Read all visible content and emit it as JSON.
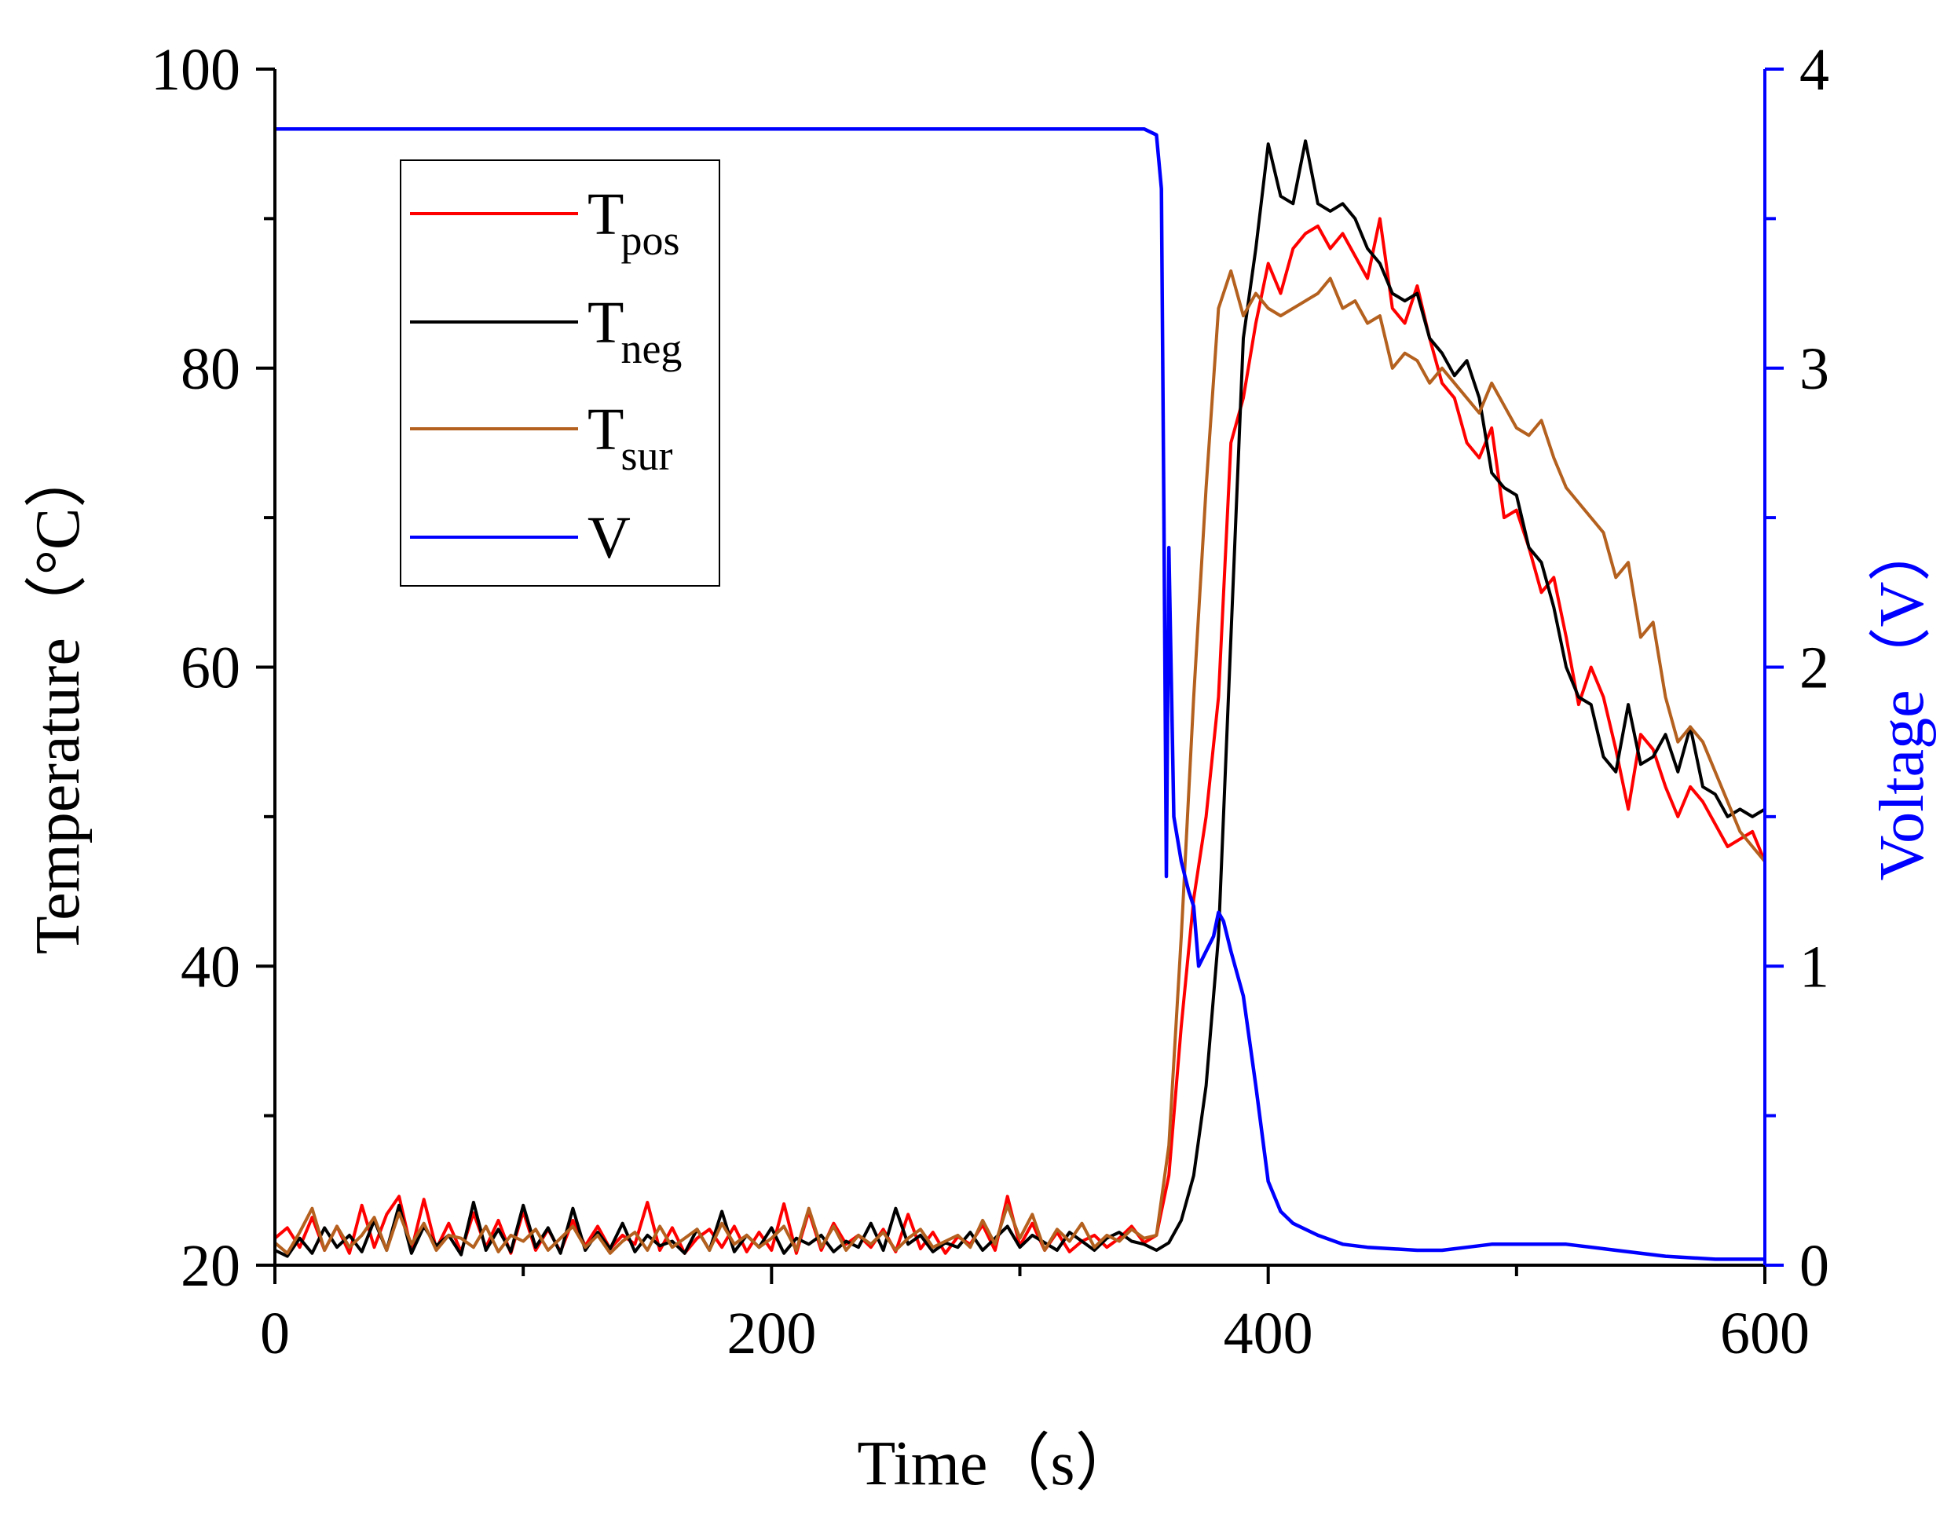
{
  "chart_data": {
    "type": "line",
    "x_label": "Time（s）",
    "y_left_label": "Temperature（°C）",
    "y_right_label": "Voltage（V）",
    "x_range": [
      0,
      600
    ],
    "y_left_range": [
      20,
      100
    ],
    "y_right_range": [
      0,
      4
    ],
    "x_ticks": [
      0,
      200,
      400,
      600
    ],
    "y_left_ticks": [
      20,
      40,
      60,
      80,
      100
    ],
    "y_right_ticks": [
      0,
      1,
      2,
      3,
      4
    ],
    "legend": [
      {
        "key": "pos",
        "base": "T",
        "sub": "pos"
      },
      {
        "key": "neg",
        "base": "T",
        "sub": "neg"
      },
      {
        "key": "sur",
        "base": "T",
        "sub": "sur"
      },
      {
        "key": "V",
        "base": "V",
        "sub": ""
      }
    ],
    "series": [
      {
        "name": "Tpos",
        "key": "pos",
        "axis": "left",
        "color": "#ff0000",
        "x": [
          0,
          5,
          10,
          15,
          20,
          25,
          30,
          35,
          40,
          45,
          50,
          55,
          60,
          65,
          70,
          75,
          80,
          85,
          90,
          95,
          100,
          105,
          110,
          115,
          120,
          125,
          130,
          135,
          140,
          145,
          150,
          155,
          160,
          165,
          170,
          175,
          180,
          185,
          190,
          195,
          200,
          205,
          210,
          215,
          220,
          225,
          230,
          235,
          240,
          245,
          250,
          255,
          260,
          265,
          270,
          275,
          280,
          285,
          290,
          295,
          300,
          305,
          310,
          315,
          320,
          325,
          330,
          335,
          340,
          345,
          350,
          355,
          360,
          365,
          370,
          375,
          380,
          385,
          390,
          395,
          400,
          405,
          410,
          415,
          420,
          425,
          430,
          435,
          440,
          445,
          450,
          455,
          460,
          465,
          470,
          475,
          480,
          485,
          490,
          495,
          500,
          505,
          510,
          515,
          520,
          525,
          530,
          535,
          540,
          545,
          550,
          555,
          560,
          565,
          570,
          575,
          580,
          585,
          590,
          595,
          600
        ],
        "y": [
          21.8,
          22.5,
          21.2,
          23.2,
          21.0,
          22.6,
          20.8,
          24.0,
          21.2,
          23.4,
          24.6,
          21.0,
          24.4,
          21.1,
          22.8,
          20.9,
          23.5,
          21.2,
          23.0,
          20.8,
          23.6,
          21.0,
          22.4,
          20.9,
          23.0,
          21.3,
          22.6,
          21.1,
          22.0,
          21.4,
          24.2,
          21.0,
          22.5,
          20.8,
          21.8,
          22.4,
          21.2,
          22.6,
          20.9,
          22.2,
          21.0,
          24.1,
          20.8,
          23.6,
          21.0,
          22.8,
          21.4,
          22.0,
          21.2,
          22.4,
          20.9,
          23.4,
          21.1,
          22.2,
          20.8,
          21.9,
          21.4,
          22.7,
          21.0,
          24.6,
          21.3,
          22.8,
          21.0,
          22.2,
          20.9,
          21.6,
          22.0,
          21.2,
          21.8,
          22.6,
          21.5,
          22.0,
          26.0,
          36.0,
          44.5,
          50.0,
          58.0,
          75.0,
          78.0,
          83.0,
          87.0,
          85.0,
          88.0,
          89.0,
          89.5,
          88.0,
          89.0,
          87.5,
          86.0,
          90.0,
          84.0,
          83.0,
          85.5,
          82.0,
          79.0,
          78.0,
          75.0,
          74.0,
          76.0,
          70.0,
          70.5,
          68.0,
          65.0,
          66.0,
          62.0,
          57.5,
          60.0,
          58.0,
          54.5,
          50.5,
          55.5,
          54.5,
          52.0,
          50.0,
          52.0,
          51.0,
          49.5,
          48.0,
          48.5,
          49.0,
          47.0
        ]
      },
      {
        "name": "Tneg",
        "key": "neg",
        "axis": "left",
        "color": "#000000",
        "x": [
          0,
          5,
          10,
          15,
          20,
          25,
          30,
          35,
          40,
          45,
          50,
          55,
          60,
          65,
          70,
          75,
          80,
          85,
          90,
          95,
          100,
          105,
          110,
          115,
          120,
          125,
          130,
          135,
          140,
          145,
          150,
          155,
          160,
          165,
          170,
          175,
          180,
          185,
          190,
          195,
          200,
          205,
          210,
          215,
          220,
          225,
          230,
          235,
          240,
          245,
          250,
          255,
          260,
          265,
          270,
          275,
          280,
          285,
          290,
          295,
          300,
          305,
          310,
          315,
          320,
          325,
          330,
          335,
          340,
          345,
          350,
          355,
          360,
          365,
          370,
          375,
          380,
          385,
          390,
          395,
          400,
          405,
          410,
          415,
          420,
          425,
          430,
          435,
          440,
          445,
          450,
          455,
          460,
          465,
          470,
          475,
          480,
          485,
          490,
          495,
          500,
          505,
          510,
          515,
          520,
          525,
          530,
          535,
          540,
          545,
          550,
          555,
          560,
          565,
          570,
          575,
          580,
          585,
          590,
          595,
          600
        ],
        "y": [
          21.0,
          20.6,
          21.8,
          20.8,
          22.5,
          21.2,
          22.0,
          20.9,
          23.0,
          21.0,
          24.0,
          20.8,
          22.6,
          21.3,
          22.0,
          20.7,
          24.2,
          21.0,
          22.4,
          20.9,
          24.0,
          21.2,
          22.5,
          20.8,
          23.8,
          21.0,
          22.2,
          21.1,
          22.8,
          20.9,
          22.0,
          21.3,
          21.6,
          20.8,
          22.4,
          21.0,
          23.6,
          20.9,
          22.0,
          21.2,
          22.5,
          20.8,
          21.8,
          21.4,
          22.0,
          20.9,
          21.6,
          21.2,
          22.8,
          21.0,
          23.8,
          21.4,
          22.0,
          20.9,
          21.5,
          21.2,
          22.2,
          21.0,
          21.8,
          22.6,
          21.2,
          22.0,
          21.5,
          21.0,
          22.2,
          21.6,
          21.0,
          21.8,
          22.2,
          21.6,
          21.4,
          21.0,
          21.5,
          23.0,
          26.0,
          32.0,
          42.0,
          62.0,
          82.0,
          88.0,
          95.0,
          91.5,
          91.0,
          95.2,
          91.0,
          90.5,
          91.0,
          90.0,
          88.0,
          87.0,
          85.0,
          84.5,
          85.0,
          82.0,
          81.0,
          79.5,
          80.5,
          78.0,
          73.0,
          72.0,
          71.5,
          68.0,
          67.0,
          64.0,
          60.0,
          58.0,
          57.5,
          54.0,
          53.0,
          57.5,
          53.5,
          54.0,
          55.5,
          53.0,
          56.0,
          52.0,
          51.5,
          50.0,
          50.5,
          50.0,
          50.5
        ]
      },
      {
        "name": "Tsur",
        "key": "sur",
        "axis": "left",
        "color": "#b4601e",
        "x": [
          0,
          5,
          10,
          15,
          20,
          25,
          30,
          35,
          40,
          45,
          50,
          55,
          60,
          65,
          70,
          75,
          80,
          85,
          90,
          95,
          100,
          105,
          110,
          115,
          120,
          125,
          130,
          135,
          140,
          145,
          150,
          155,
          160,
          165,
          170,
          175,
          180,
          185,
          190,
          195,
          200,
          205,
          210,
          215,
          220,
          225,
          230,
          235,
          240,
          245,
          250,
          255,
          260,
          265,
          270,
          275,
          280,
          285,
          290,
          295,
          300,
          305,
          310,
          315,
          320,
          325,
          330,
          335,
          340,
          345,
          350,
          355,
          360,
          365,
          370,
          375,
          380,
          385,
          390,
          395,
          400,
          405,
          410,
          415,
          420,
          425,
          430,
          435,
          440,
          445,
          450,
          455,
          460,
          465,
          470,
          475,
          480,
          485,
          490,
          495,
          500,
          505,
          510,
          515,
          520,
          525,
          530,
          535,
          540,
          545,
          550,
          555,
          560,
          565,
          570,
          575,
          580,
          585,
          590,
          595,
          600
        ],
        "y": [
          21.5,
          20.8,
          22.2,
          23.8,
          21.0,
          22.6,
          21.2,
          22.0,
          23.2,
          21.0,
          23.5,
          21.4,
          22.8,
          21.0,
          22.0,
          21.8,
          21.2,
          22.6,
          20.9,
          22.0,
          21.6,
          22.4,
          21.0,
          21.8,
          22.6,
          21.2,
          22.0,
          20.8,
          21.6,
          22.2,
          21.0,
          22.6,
          21.2,
          21.8,
          22.4,
          21.0,
          22.8,
          21.4,
          22.0,
          21.2,
          21.8,
          22.6,
          21.0,
          23.8,
          21.2,
          22.6,
          21.0,
          22.0,
          21.4,
          22.2,
          21.0,
          21.8,
          22.4,
          21.2,
          21.6,
          22.0,
          21.2,
          23.0,
          21.4,
          24.0,
          21.8,
          23.4,
          21.0,
          22.4,
          21.6,
          22.8,
          21.2,
          22.0,
          21.6,
          22.4,
          21.8,
          22.0,
          28.0,
          42.0,
          58.0,
          72.0,
          84.0,
          86.5,
          83.5,
          85.0,
          84.0,
          83.5,
          84.0,
          84.5,
          85.0,
          86.0,
          84.0,
          84.5,
          83.0,
          83.5,
          80.0,
          81.0,
          80.5,
          79.0,
          80.0,
          79.0,
          78.0,
          77.0,
          79.0,
          77.5,
          76.0,
          75.5,
          76.5,
          74.0,
          72.0,
          71.0,
          70.0,
          69.0,
          66.0,
          67.0,
          62.0,
          63.0,
          58.0,
          55.0,
          56.0,
          55.0,
          53.0,
          51.0,
          49.0,
          48.0,
          47.0
        ]
      },
      {
        "name": "V",
        "key": "V",
        "axis": "right",
        "color": "#0000ff",
        "x": [
          0,
          50,
          100,
          150,
          200,
          250,
          300,
          350,
          355,
          357,
          358,
          359,
          360,
          362,
          365,
          368,
          370,
          372,
          375,
          378,
          380,
          382,
          385,
          390,
          395,
          400,
          405,
          410,
          420,
          430,
          440,
          460,
          470,
          480,
          490,
          500,
          520,
          540,
          560,
          580,
          600
        ],
        "y": [
          3.8,
          3.8,
          3.8,
          3.8,
          3.8,
          3.8,
          3.8,
          3.8,
          3.78,
          3.6,
          2.5,
          1.3,
          2.4,
          1.5,
          1.35,
          1.25,
          1.2,
          1.0,
          1.05,
          1.1,
          1.18,
          1.15,
          1.05,
          0.9,
          0.6,
          0.28,
          0.18,
          0.14,
          0.1,
          0.07,
          0.06,
          0.05,
          0.05,
          0.06,
          0.07,
          0.07,
          0.07,
          0.05,
          0.03,
          0.02,
          0.02
        ]
      }
    ]
  }
}
